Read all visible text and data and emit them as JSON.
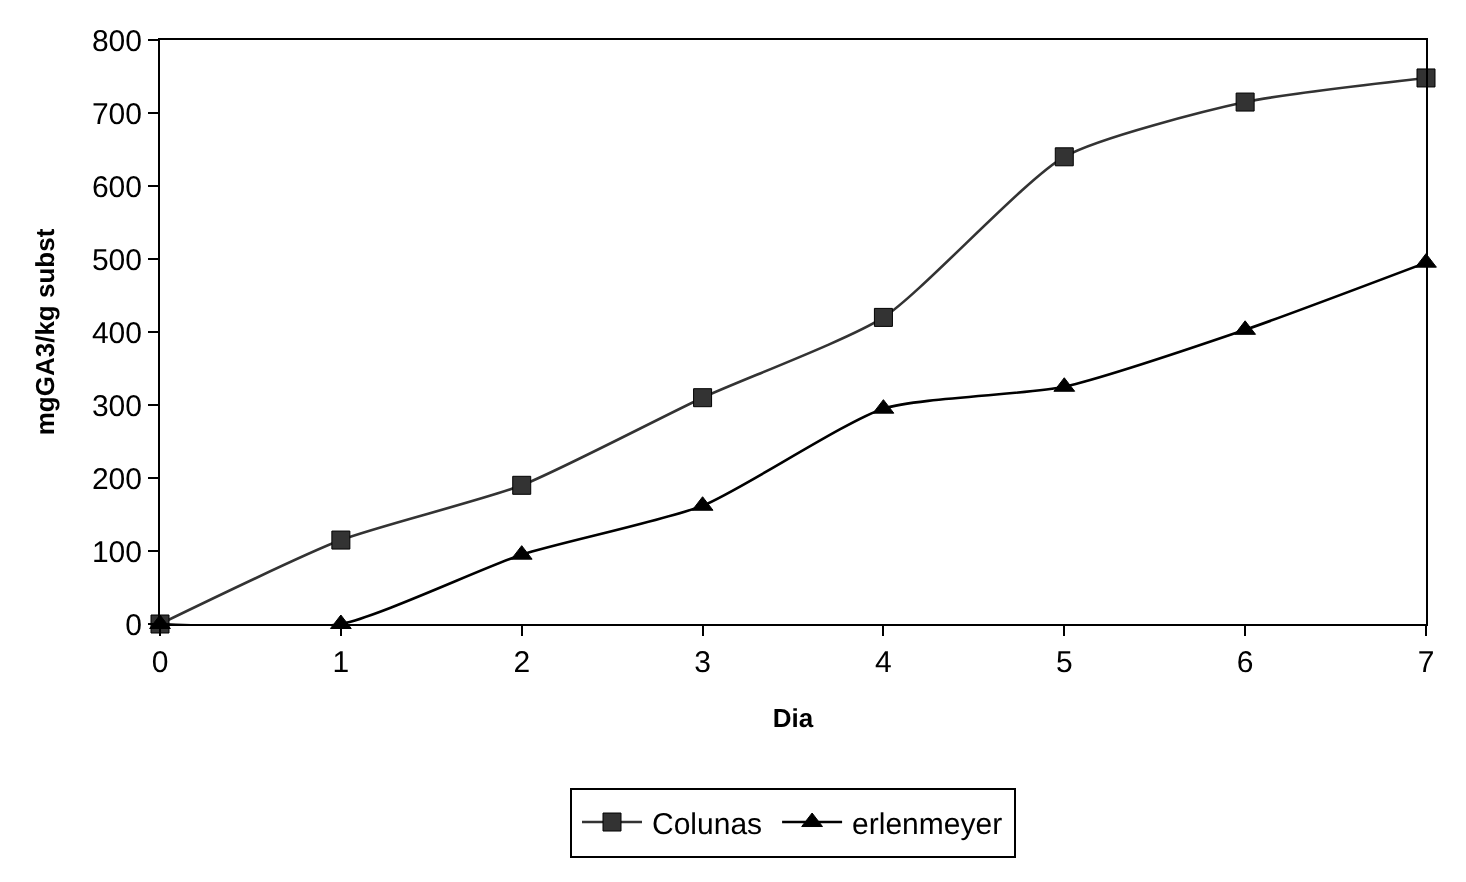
{
  "chart_data": {
    "type": "line",
    "xlabel": "Dia",
    "ylabel": "mgGA3/kg subst",
    "x": [
      0,
      1,
      2,
      3,
      4,
      5,
      6,
      7
    ],
    "series": [
      {
        "name": "Colunas",
        "color": "#333333",
        "marker": "square",
        "values": [
          0,
          115,
          190,
          310,
          420,
          640,
          715,
          748
        ]
      },
      {
        "name": "erlenmeyer",
        "color": "#000000",
        "marker": "triangle",
        "values": [
          0,
          0,
          95,
          162,
          295,
          325,
          403,
          495
        ]
      }
    ],
    "xlim": [
      0,
      7
    ],
    "xticks": [
      0,
      1,
      2,
      3,
      4,
      5,
      6,
      7
    ],
    "ylim": [
      0,
      800
    ],
    "yticks": [
      0,
      100,
      200,
      300,
      400,
      500,
      600,
      700,
      800
    ],
    "grid": false,
    "legend": "bottom",
    "line_style": "solid"
  }
}
